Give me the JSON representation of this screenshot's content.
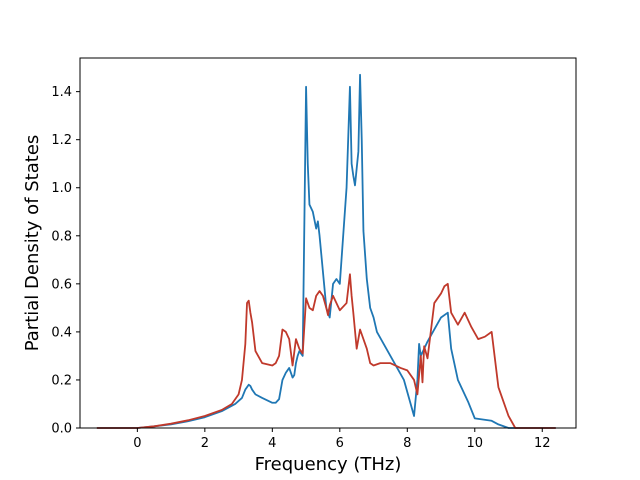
{
  "chart_data": {
    "type": "line",
    "title": "",
    "xlabel": "Frequency (THz)",
    "ylabel": "Partial Density of States",
    "xlim": [
      -1.7,
      13.0
    ],
    "ylim": [
      0.0,
      1.54
    ],
    "xticks": [
      0,
      2,
      4,
      6,
      8,
      10,
      12
    ],
    "xtick_labels": [
      "0",
      "2",
      "4",
      "6",
      "8",
      "10",
      "12"
    ],
    "yticks": [
      0.0,
      0.2,
      0.4,
      0.6,
      0.8,
      1.0,
      1.2,
      1.4
    ],
    "ytick_labels": [
      "0.0",
      "0.2",
      "0.4",
      "0.6",
      "0.8",
      "1.0",
      "1.2",
      "1.4"
    ],
    "grid": false,
    "legend": "none",
    "series": [
      {
        "color": "#1f77b4",
        "x": [
          -1.2,
          0,
          0.5,
          1,
          1.5,
          2,
          2.5,
          2.9,
          3.1,
          3.2,
          3.3,
          3.35,
          3.4,
          3.5,
          3.7,
          4.0,
          4.1,
          4.2,
          4.3,
          4.4,
          4.5,
          4.6,
          4.65,
          4.7,
          4.75,
          4.8,
          4.9,
          5.0,
          5.05,
          5.1,
          5.2,
          5.3,
          5.35,
          5.4,
          5.5,
          5.6,
          5.7,
          5.8,
          5.9,
          6.0,
          6.1,
          6.2,
          6.3,
          6.35,
          6.4,
          6.45,
          6.5,
          6.55,
          6.6,
          6.65,
          6.7,
          6.8,
          6.9,
          7.0,
          7.1,
          7.3,
          7.5,
          7.7,
          7.9,
          8.0,
          8.2,
          8.3,
          8.35,
          8.4,
          8.5,
          8.6,
          8.8,
          9.0,
          9.2,
          9.3,
          9.5,
          9.8,
          10.0,
          10.5,
          10.7,
          11.0,
          12.4
        ],
        "y": [
          0.0,
          0.0,
          0.007,
          0.015,
          0.028,
          0.045,
          0.07,
          0.1,
          0.125,
          0.16,
          0.18,
          0.175,
          0.16,
          0.14,
          0.125,
          0.105,
          0.105,
          0.12,
          0.2,
          0.23,
          0.25,
          0.21,
          0.22,
          0.27,
          0.3,
          0.32,
          0.3,
          1.42,
          1.1,
          0.93,
          0.9,
          0.83,
          0.86,
          0.8,
          0.65,
          0.5,
          0.46,
          0.6,
          0.62,
          0.6,
          0.8,
          1.0,
          1.42,
          1.1,
          1.05,
          1.01,
          1.08,
          1.15,
          1.47,
          1.2,
          0.82,
          0.62,
          0.5,
          0.46,
          0.4,
          0.35,
          0.3,
          0.25,
          0.2,
          0.15,
          0.05,
          0.2,
          0.35,
          0.3,
          0.33,
          0.36,
          0.41,
          0.46,
          0.48,
          0.33,
          0.2,
          0.11,
          0.04,
          0.03,
          0.015,
          0.0,
          0.0
        ]
      },
      {
        "color": "#c0392b",
        "x": [
          -1.2,
          0,
          0.5,
          1,
          1.5,
          2,
          2.5,
          2.8,
          3.0,
          3.1,
          3.2,
          3.25,
          3.3,
          3.35,
          3.4,
          3.5,
          3.7,
          4.0,
          4.1,
          4.2,
          4.3,
          4.4,
          4.5,
          4.6,
          4.7,
          4.8,
          4.9,
          5.0,
          5.05,
          5.1,
          5.2,
          5.3,
          5.4,
          5.5,
          5.6,
          5.65,
          5.7,
          5.8,
          6.0,
          6.2,
          6.3,
          6.35,
          6.4,
          6.5,
          6.6,
          6.8,
          6.9,
          7.0,
          7.2,
          7.5,
          7.8,
          8.0,
          8.2,
          8.3,
          8.4,
          8.45,
          8.5,
          8.6,
          8.8,
          9.0,
          9.1,
          9.2,
          9.3,
          9.5,
          9.7,
          9.9,
          10.1,
          10.3,
          10.5,
          10.7,
          11.0,
          11.2,
          12.4
        ],
        "y": [
          0.0,
          0.0,
          0.007,
          0.018,
          0.032,
          0.05,
          0.075,
          0.1,
          0.14,
          0.2,
          0.35,
          0.52,
          0.53,
          0.48,
          0.44,
          0.32,
          0.27,
          0.26,
          0.27,
          0.3,
          0.41,
          0.4,
          0.37,
          0.26,
          0.37,
          0.33,
          0.31,
          0.54,
          0.52,
          0.5,
          0.49,
          0.55,
          0.57,
          0.55,
          0.5,
          0.47,
          0.51,
          0.55,
          0.49,
          0.52,
          0.64,
          0.55,
          0.48,
          0.33,
          0.41,
          0.33,
          0.27,
          0.26,
          0.27,
          0.27,
          0.25,
          0.24,
          0.2,
          0.14,
          0.3,
          0.19,
          0.34,
          0.29,
          0.52,
          0.56,
          0.59,
          0.6,
          0.48,
          0.43,
          0.48,
          0.42,
          0.37,
          0.38,
          0.4,
          0.17,
          0.05,
          0.0,
          0.0
        ]
      }
    ]
  }
}
